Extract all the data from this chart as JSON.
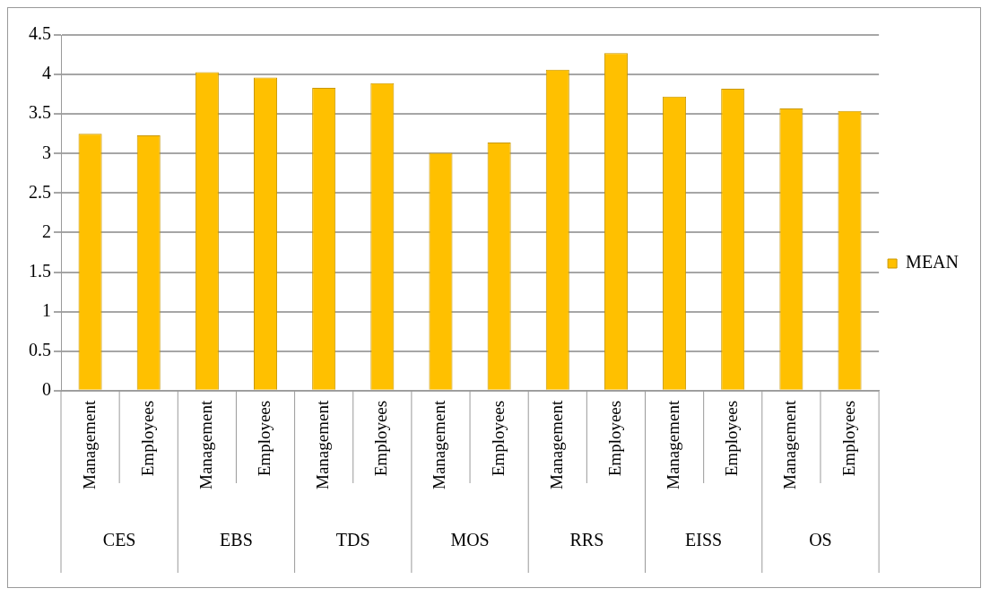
{
  "chart_data": {
    "type": "bar",
    "categories": [
      "Management",
      "Employees",
      "Management",
      "Employees",
      "Management",
      "Employees",
      "Management",
      "Employees",
      "Management",
      "Employees",
      "Management",
      "Employees",
      "Management",
      "Employees"
    ],
    "series": [
      {
        "name": "MEAN",
        "color": "#ffc000",
        "values": [
          3.25,
          3.23,
          4.03,
          3.96,
          3.83,
          3.89,
          3.01,
          3.14,
          4.06,
          4.27,
          3.72,
          3.82,
          3.57,
          3.54
        ]
      }
    ],
    "annotations": [
      "CES",
      "EBS",
      "TDS",
      "MOS",
      "RRS",
      "EISS",
      "OS"
    ],
    "ylim": [
      0,
      4.5
    ],
    "yticks": [
      0,
      0.5,
      1,
      1.5,
      2,
      2.5,
      3,
      3.5,
      4,
      4.5
    ],
    "grid": "y",
    "legend": "right"
  }
}
